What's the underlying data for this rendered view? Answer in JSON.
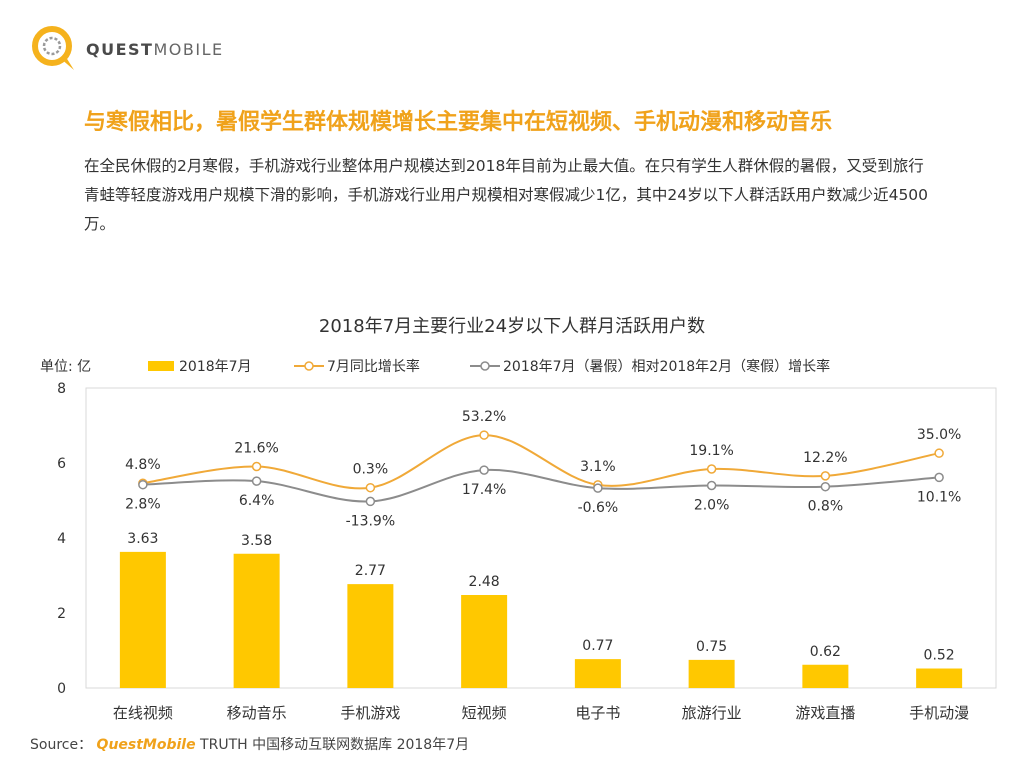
{
  "brand": {
    "name_bold": "QUEST",
    "name_light": "MOBILE"
  },
  "headline": "与寒假相比，暑假学生群体规模增长主要集中在短视频、手机动漫和移动音乐",
  "description": "在全民休假的2月寒假，手机游戏行业整体用户规模达到2018年目前为止最大值。在只有学生人群休假的暑假，又受到旅行青蛙等轻度游戏用户规模下滑的影响，手机游戏行业用户规模相对寒假减少1亿，其中24岁以下人群活跃用户数减少近4500万。",
  "source": {
    "label": "Source：",
    "brand": "QuestMobile",
    "text": " TRUTH 中国移动互联网数据库 2018年7月"
  },
  "colors": {
    "bar": "#ffc800",
    "line_yoy": "#f0a938",
    "line_vs_feb": "#8c8c8c",
    "accent": "#f0a21b"
  },
  "chart_data": {
    "type": "bar",
    "title": "2018年7月主要行业24岁以下人群月活跃用户数",
    "unit_label": "单位: 亿",
    "ylim": [
      0,
      8
    ],
    "yticks": [
      0,
      2,
      4,
      6,
      8
    ],
    "categories": [
      "在线视频",
      "移动音乐",
      "手机游戏",
      "短视频",
      "电子书",
      "旅游行业",
      "游戏直播",
      "手机动漫"
    ],
    "bar_series": {
      "name": "2018年7月",
      "values": [
        3.63,
        3.58,
        2.77,
        2.48,
        0.77,
        0.75,
        0.62,
        0.52
      ],
      "labels": [
        "3.63",
        "3.58",
        "2.77",
        "2.48",
        "0.77",
        "0.75",
        "0.62",
        "0.52"
      ]
    },
    "line_series": [
      {
        "name": "7月同比增长率",
        "values": [
          4.8,
          21.6,
          0.3,
          53.2,
          3.1,
          19.1,
          12.2,
          35.0
        ],
        "labels": [
          "4.8%",
          "21.6%",
          "0.3%",
          "53.2%",
          "3.1%",
          "19.1%",
          "12.2%",
          "35.0%"
        ]
      },
      {
        "name": "2018年7月（暑假）相对2018年2月（寒假）增长率",
        "values": [
          2.8,
          6.4,
          -13.9,
          17.4,
          -0.6,
          2.0,
          0.8,
          10.1
        ],
        "labels": [
          "2.8%",
          "6.4%",
          "-13.9%",
          "17.4%",
          "-0.6%",
          "2.0%",
          "0.8%",
          "10.1%"
        ]
      }
    ],
    "grid": false,
    "legend_position": "top"
  }
}
